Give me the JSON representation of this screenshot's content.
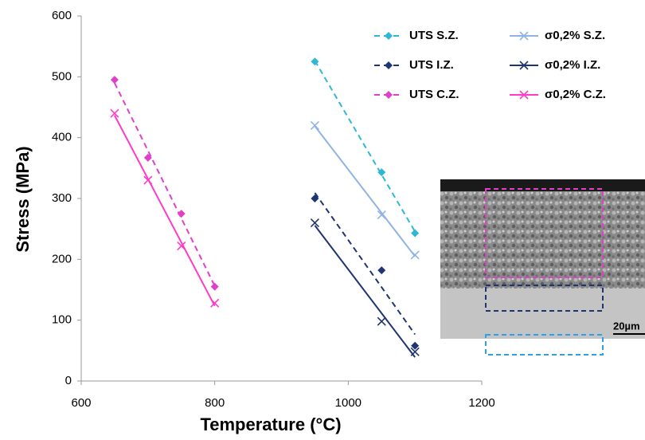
{
  "chart_data": {
    "type": "scatter",
    "x_label": "Temperature (°C)",
    "y_label": "Stress (MPa)",
    "xlim": [
      600,
      1200
    ],
    "xticks": [
      600,
      800,
      1000,
      1200
    ],
    "ylim": [
      0,
      600
    ],
    "yticks": [
      0,
      100,
      200,
      300,
      400,
      500,
      600
    ],
    "grid": false,
    "trendline": "linear",
    "series": [
      {
        "name": "UTS S.Z.",
        "color": "#2eb8d6",
        "marker": "diamond",
        "line": "dashed",
        "x": [
          950,
          1050,
          1100
        ],
        "values": [
          525,
          343,
          243
        ]
      },
      {
        "name": "σ0,2% S.Z.",
        "color": "#8fb4e3",
        "marker": "x",
        "line": "solid",
        "x": [
          950,
          1050,
          1100
        ],
        "values": [
          420,
          273,
          207
        ]
      },
      {
        "name": "UTS I.Z.",
        "color": "#1f3470",
        "marker": "diamond",
        "line": "dashed",
        "x": [
          950,
          1050,
          1100
        ],
        "values": [
          300,
          182,
          58
        ]
      },
      {
        "name": "σ0,2% I.Z.",
        "color": "#1f3470",
        "marker": "x",
        "line": "solid",
        "x": [
          950,
          1050,
          1100
        ],
        "values": [
          260,
          98,
          48
        ]
      },
      {
        "name": "UTS C.Z.",
        "color": "#e040c8",
        "marker": "diamond",
        "line": "dashed",
        "x": [
          650,
          700,
          750,
          800
        ],
        "values": [
          495,
          367,
          275,
          155
        ]
      },
      {
        "name": "σ0,2% C.Z.",
        "color": "#ff3cc8",
        "marker": "x",
        "line": "solid",
        "x": [
          650,
          700,
          750,
          800
        ],
        "values": [
          440,
          330,
          222,
          128
        ]
      }
    ],
    "inset": {
      "scale_label": "20µm"
    }
  }
}
